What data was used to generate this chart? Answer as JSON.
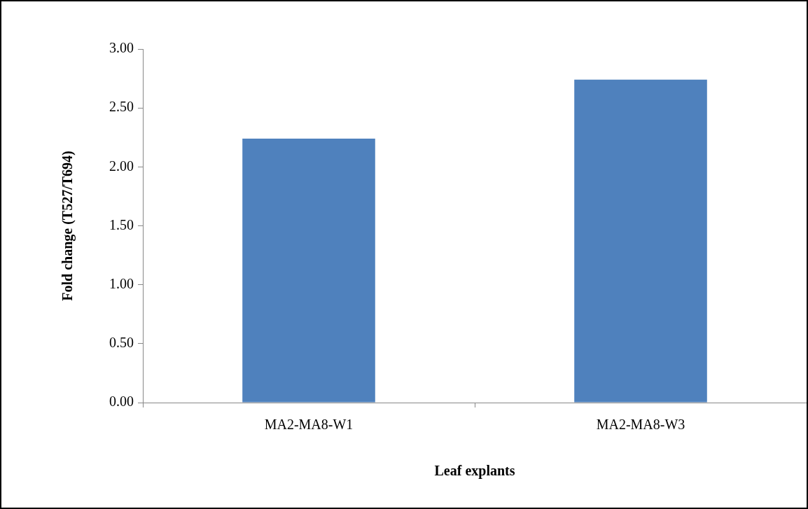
{
  "chart_data": {
    "type": "bar",
    "xlabel": "Leaf explants",
    "ylabel": "Fold change (T527/T694)",
    "categories": [
      "MA2-MA8-W1",
      "MA2-MA8-W3"
    ],
    "values": [
      2.24,
      2.74
    ],
    "color": "#4f81bd",
    "ylim": [
      0,
      3
    ],
    "yticks": [
      {
        "value": 0,
        "label": "0.00"
      },
      {
        "value": 0.5,
        "label": "0.50"
      },
      {
        "value": 1,
        "label": "1.00"
      },
      {
        "value": 1.5,
        "label": "1.50"
      },
      {
        "value": 2,
        "label": "2.00"
      },
      {
        "value": 2.5,
        "label": "2.50"
      },
      {
        "value": 3,
        "label": "3.00"
      }
    ],
    "grid": false,
    "legend": false
  }
}
